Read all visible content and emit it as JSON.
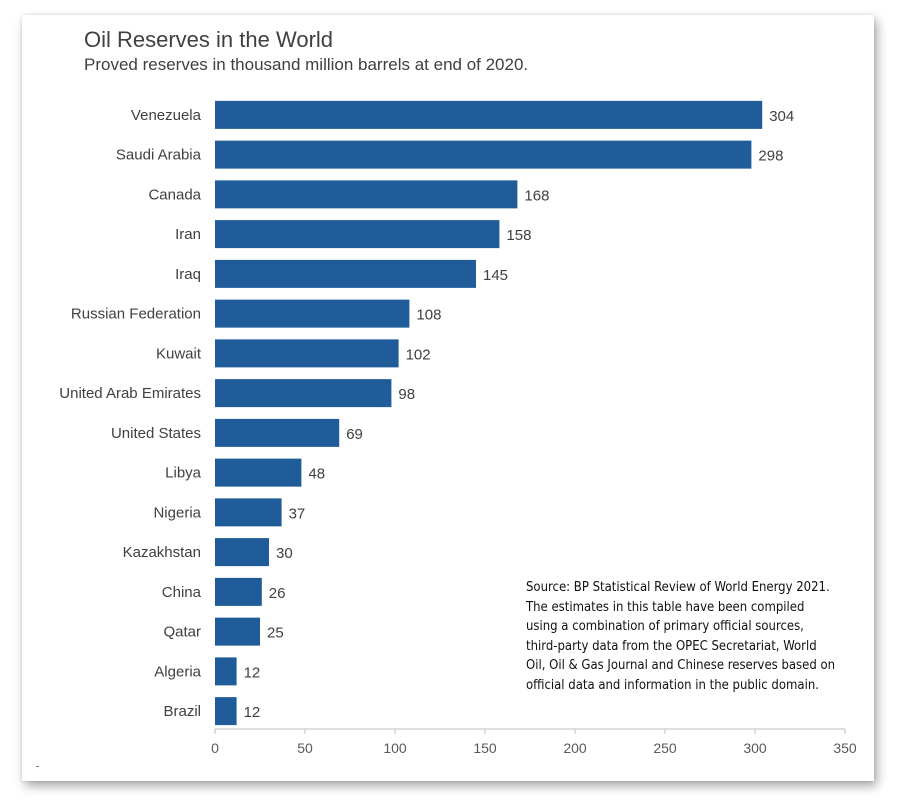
{
  "chart_data": {
    "type": "bar",
    "orientation": "horizontal",
    "title": "Oil Reserves  in the World",
    "subtitle": "Proved reserves in thousand  million barrels at end of 2020.",
    "categories": [
      "Venezuela",
      "Saudi Arabia",
      "Canada",
      "Iran",
      "Iraq",
      "Russian Federation",
      "Kuwait",
      "United Arab Emirates",
      "United States",
      "Libya",
      "Nigeria",
      "Kazakhstan",
      "China",
      "Qatar",
      "Algeria",
      "Brazil"
    ],
    "values": [
      304,
      298,
      168,
      158,
      145,
      108,
      102,
      98,
      69,
      48,
      37,
      30,
      26,
      25,
      12,
      12
    ],
    "xlim": [
      0,
      350
    ],
    "xticks": [
      0,
      50,
      100,
      150,
      200,
      250,
      300,
      350
    ],
    "xlabel": "",
    "ylabel": "",
    "grid": false,
    "data_labels": true,
    "bar_color": "#1f5c99",
    "annotation": "Source: BP Statistical Review of World Energy 2021. The estimates in this table have been compiled using a combination of primary official sources, third-party data from the OPEC Secretariat, World Oil, Oil & Gas Journal and Chinese reserves based on official data and information in the public domain."
  }
}
